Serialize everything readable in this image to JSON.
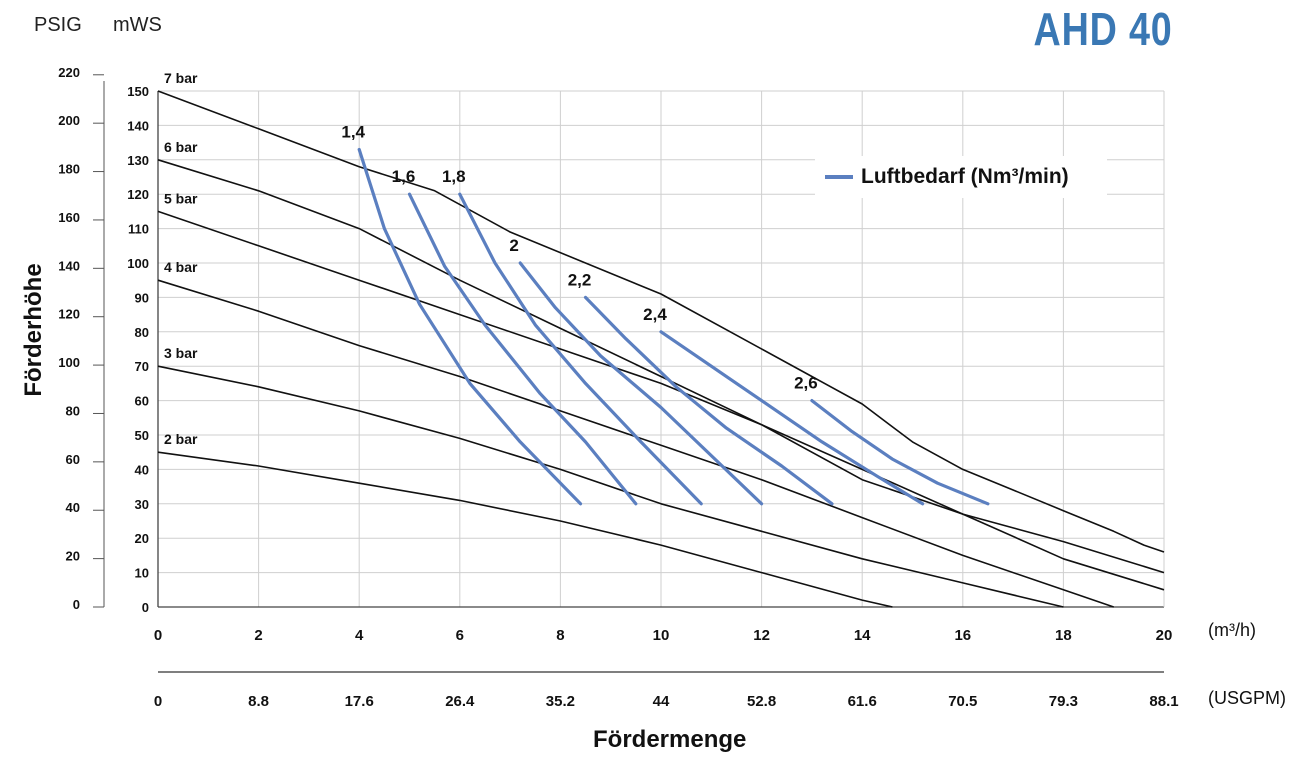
{
  "header": {
    "left_unit": "PSIG",
    "right_unit": "mWS",
    "model": "AHD 40"
  },
  "axes": {
    "x_title": "Fördermenge",
    "y_title": "Förderhöhe",
    "x_unit_primary": "(m³/h)",
    "x_unit_secondary": "(USGPM)"
  },
  "legend": {
    "label": "Luftbedarf (Nm³/min)",
    "color": "#5b7fc0"
  },
  "chart_data": {
    "type": "line",
    "title": "AHD 40",
    "xlabel": "Fördermenge",
    "ylabel": "Förderhöhe",
    "x_unit": "m3/h",
    "y_unit": "mWS",
    "xlim": [
      0,
      20
    ],
    "ylim": [
      0,
      150
    ],
    "grid": true,
    "legend_position": "top-right",
    "x_ticks": [
      "0",
      "2",
      "4",
      "6",
      "8",
      "10",
      "12",
      "14",
      "16",
      "18",
      "20"
    ],
    "x_ticks_usgpm": [
      "0",
      "8.8",
      "17.6",
      "26.4",
      "35.2",
      "44",
      "52.8",
      "61.6",
      "70.5",
      "79.3",
      "88.1"
    ],
    "y_ticks_mws": [
      "0",
      "10",
      "20",
      "30",
      "40",
      "50",
      "60",
      "70",
      "80",
      "90",
      "100",
      "110",
      "120",
      "130",
      "140",
      "150"
    ],
    "y_ticks_psig": [
      "0",
      "20",
      "40",
      "60",
      "80",
      "100",
      "120",
      "140",
      "160",
      "180",
      "200",
      "220"
    ],
    "pressure_series": [
      {
        "name": "7 bar",
        "x": [
          0,
          2,
          4,
          5.5,
          7,
          8.5,
          10,
          11.5,
          13,
          14,
          15,
          16,
          17,
          18,
          19,
          19.6,
          20
        ],
        "y": [
          150,
          139,
          128,
          121,
          109,
          100,
          91,
          79,
          67,
          59,
          48,
          40,
          34,
          28,
          22,
          18,
          16
        ]
      },
      {
        "name": "6 bar",
        "x": [
          0,
          2,
          4,
          6,
          8,
          10,
          12,
          14,
          16,
          18,
          20
        ],
        "y": [
          130,
          121,
          110,
          95,
          81,
          67,
          53,
          37,
          27,
          19,
          10
        ]
      },
      {
        "name": "5 bar",
        "x": [
          0,
          2,
          4,
          6,
          8,
          10,
          12,
          14,
          16,
          18,
          20
        ],
        "y": [
          115,
          105,
          95,
          85,
          75,
          65,
          53,
          40,
          27,
          14,
          5
        ]
      },
      {
        "name": "4 bar",
        "x": [
          0,
          2,
          4,
          6,
          8,
          10,
          12,
          14,
          16,
          18,
          19
        ],
        "y": [
          95,
          86,
          76,
          67,
          57,
          47,
          37,
          26,
          15,
          5,
          0
        ]
      },
      {
        "name": "3 bar",
        "x": [
          0,
          2,
          4,
          6,
          8,
          10,
          12,
          14,
          16,
          18
        ],
        "y": [
          70,
          64,
          57,
          49,
          40,
          30,
          22,
          14,
          7,
          0
        ]
      },
      {
        "name": "2 bar",
        "x": [
          0,
          2,
          4,
          6,
          8,
          10,
          12,
          14,
          14.6
        ],
        "y": [
          45,
          41,
          36,
          31,
          25,
          18,
          10,
          2,
          0
        ]
      }
    ],
    "air_series": [
      {
        "name": "1,4",
        "x": [
          4,
          4.5,
          5.2,
          6.2,
          7.2,
          8.4
        ],
        "y": [
          133,
          110,
          88,
          65,
          48,
          30
        ]
      },
      {
        "name": "1,6",
        "x": [
          5,
          5.7,
          6.5,
          7.6,
          8.5,
          9.5
        ],
        "y": [
          120,
          99,
          82,
          62,
          48,
          30
        ]
      },
      {
        "name": "1,8",
        "x": [
          6,
          6.7,
          7.5,
          8.5,
          9.6,
          10.8
        ],
        "y": [
          120,
          100,
          82,
          65,
          48,
          30
        ]
      },
      {
        "name": "2",
        "x": [
          7.2,
          7.9,
          8.8,
          10,
          11,
          12
        ],
        "y": [
          100,
          87,
          73,
          58,
          44,
          30
        ]
      },
      {
        "name": "2,2",
        "x": [
          8.5,
          9.3,
          10.3,
          11.3,
          12.4,
          13.4
        ],
        "y": [
          90,
          78,
          64,
          52,
          41,
          30
        ]
      },
      {
        "name": "2,4",
        "x": [
          10,
          11,
          12,
          13.2,
          14.3,
          15.2
        ],
        "y": [
          80,
          70,
          60,
          48,
          38,
          30
        ]
      },
      {
        "name": "2,6",
        "x": [
          13,
          13.8,
          14.6,
          15.5,
          16.5
        ],
        "y": [
          60,
          51,
          43,
          36,
          30
        ]
      }
    ]
  }
}
